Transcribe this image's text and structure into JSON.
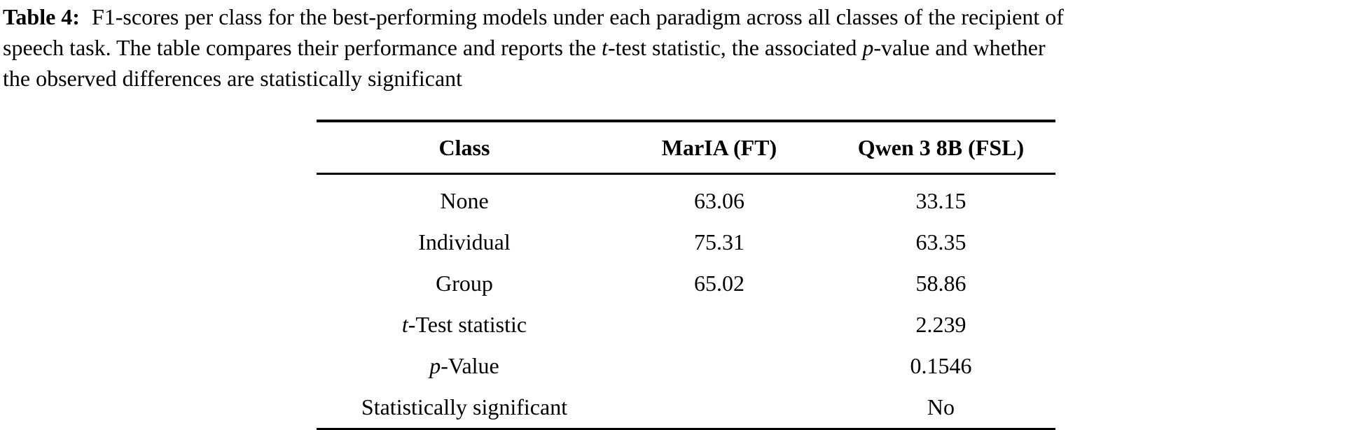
{
  "colors": {
    "text": "#000000",
    "background": "#ffffff",
    "rule": "#000000"
  },
  "caption": {
    "line1": {
      "label": "Table 4:",
      "text": "F1-scores per class for the best-performing models under each paradigm across all classes of the recipient of"
    },
    "line2": {
      "pre": "speech task. The table compares their performance and reports the ",
      "italic1": "t",
      "mid": "-test statistic, the associated ",
      "italic2": "p",
      "post": "-value and whether"
    },
    "line3": {
      "text": "the observed differences are statistically significant"
    }
  },
  "table": {
    "header": {
      "class": "Class",
      "maria": "MarIA (FT)",
      "qwen": "Qwen 3 8B (FSL)"
    },
    "rows": [
      {
        "label_italic": "",
        "label": "None",
        "maria": "63.06",
        "qwen": "33.15"
      },
      {
        "label_italic": "",
        "label": "Individual",
        "maria": "75.31",
        "qwen": "63.35"
      },
      {
        "label_italic": "",
        "label": "Group",
        "maria": "65.02",
        "qwen": "58.86"
      },
      {
        "label_italic": "t",
        "label": "-Test statistic",
        "maria": "",
        "qwen": "2.239"
      },
      {
        "label_italic": "p",
        "label": "-Value",
        "maria": "",
        "qwen": "0.1546"
      },
      {
        "label_italic": "",
        "label": "Statistically significant",
        "maria": "",
        "qwen": "No"
      }
    ]
  }
}
